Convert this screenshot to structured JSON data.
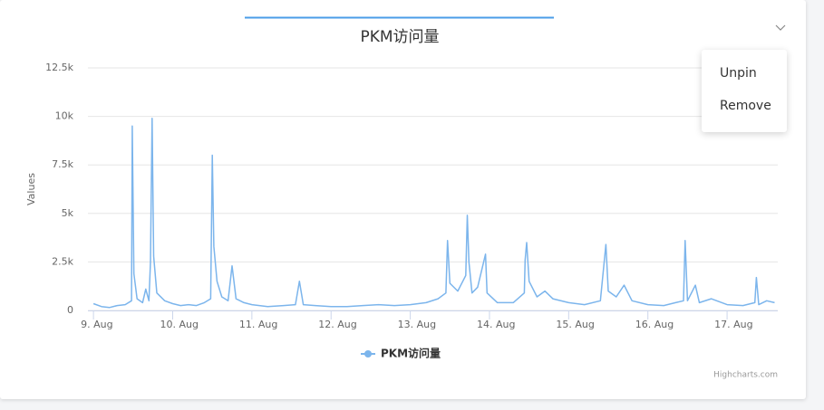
{
  "chart_data": {
    "type": "line",
    "title": "PKM访问量",
    "y_label": "Values",
    "credits": "Highcharts.com",
    "series": [
      {
        "name": "PKM访问量",
        "color": "#7cb5ec",
        "x": [
          9.0,
          9.1,
          9.2,
          9.3,
          9.4,
          9.48,
          9.49,
          9.51,
          9.55,
          9.62,
          9.66,
          9.7,
          9.72,
          9.74,
          9.76,
          9.8,
          9.9,
          10.0,
          10.1,
          10.2,
          10.3,
          10.4,
          10.48,
          10.5,
          10.52,
          10.56,
          10.62,
          10.7,
          10.75,
          10.8,
          10.9,
          11.0,
          11.2,
          11.4,
          11.55,
          11.6,
          11.65,
          11.8,
          12.0,
          12.2,
          12.4,
          12.6,
          12.8,
          13.0,
          13.2,
          13.35,
          13.45,
          13.47,
          13.5,
          13.6,
          13.7,
          13.72,
          13.74,
          13.78,
          13.85,
          13.95,
          13.97,
          14.1,
          14.3,
          14.44,
          14.45,
          14.47,
          14.5,
          14.6,
          14.7,
          14.8,
          15.0,
          15.2,
          15.4,
          15.47,
          15.5,
          15.6,
          15.7,
          15.8,
          16.0,
          16.2,
          16.35,
          16.45,
          16.47,
          16.5,
          16.6,
          16.65,
          16.8,
          17.0,
          17.2,
          17.35,
          17.37,
          17.4,
          17.5,
          17.6
        ],
        "values": [
          350,
          200,
          150,
          250,
          300,
          500,
          9500,
          1900,
          600,
          400,
          1100,
          500,
          2500,
          9900,
          2800,
          900,
          500,
          350,
          250,
          300,
          250,
          400,
          600,
          8000,
          3300,
          1500,
          700,
          500,
          2300,
          600,
          400,
          300,
          200,
          250,
          300,
          1500,
          300,
          250,
          200,
          200,
          250,
          300,
          250,
          300,
          400,
          600,
          900,
          3600,
          1400,
          1000,
          1800,
          4900,
          2500,
          900,
          1200,
          2900,
          900,
          400,
          400,
          900,
          2600,
          3500,
          1500,
          700,
          1000,
          600,
          400,
          300,
          500,
          3400,
          1000,
          700,
          1300,
          500,
          300,
          250,
          400,
          500,
          3600,
          500,
          1300,
          400,
          600,
          300,
          250,
          400,
          1700,
          300,
          500,
          400
        ]
      }
    ],
    "xlim": [
      8.93,
      17.64
    ],
    "xticks": [
      {
        "value": 9,
        "label": "9. Aug"
      },
      {
        "value": 10,
        "label": "10. Aug"
      },
      {
        "value": 11,
        "label": "11. Aug"
      },
      {
        "value": 12,
        "label": "12. Aug"
      },
      {
        "value": 13,
        "label": "13. Aug"
      },
      {
        "value": 14,
        "label": "14. Aug"
      },
      {
        "value": 15,
        "label": "15. Aug"
      },
      {
        "value": 16,
        "label": "16. Aug"
      },
      {
        "value": 17,
        "label": "17. Aug"
      }
    ],
    "ylim": [
      0,
      12500
    ],
    "yticks": [
      0,
      {
        "value": 2500,
        "label": "2.5k"
      },
      {
        "value": 5000,
        "label": "5k"
      },
      {
        "value": 7500,
        "label": "7.5k"
      },
      {
        "value": 10000,
        "label": "10k"
      },
      {
        "value": 12500,
        "label": "12.5k"
      }
    ],
    "grid": true
  },
  "menu": [
    "Unpin",
    "Remove"
  ]
}
